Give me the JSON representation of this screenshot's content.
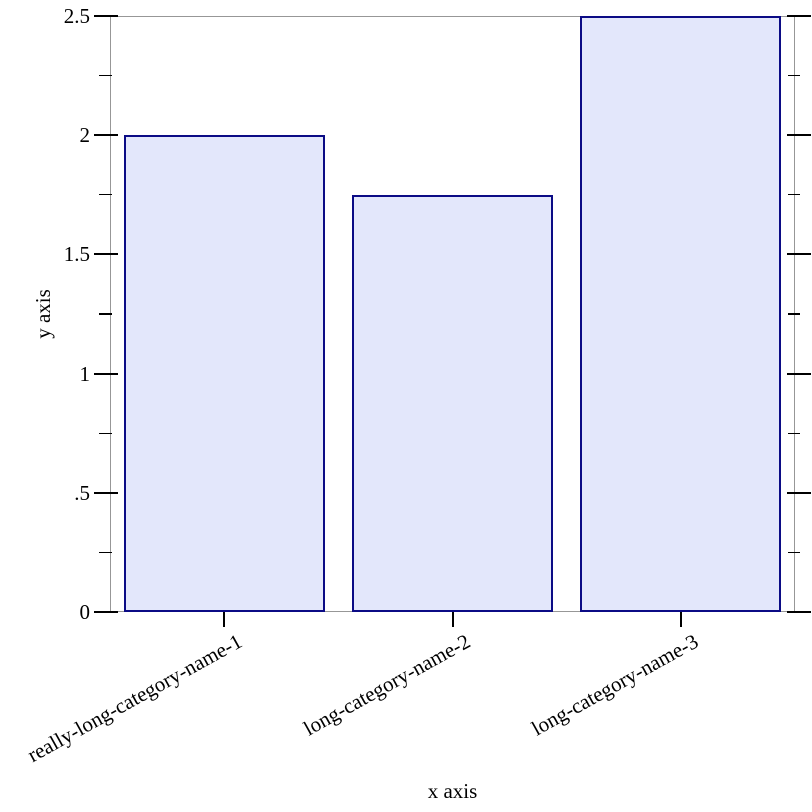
{
  "chart_data": {
    "type": "bar",
    "title": "",
    "xlabel": "x axis",
    "ylabel": "y axis",
    "categories": [
      "really-long-category-name-1",
      "long-category-name-2",
      "long-category-name-3"
    ],
    "values": [
      2,
      1.75,
      2.5
    ],
    "ylim": [
      0,
      2.5
    ],
    "y_major_ticks": [
      {
        "value": 0,
        "label": "0"
      },
      {
        "value": 0.5,
        "label": ".5"
      },
      {
        "value": 1,
        "label": "1"
      },
      {
        "value": 1.5,
        "label": "1.5"
      },
      {
        "value": 2,
        "label": "2"
      },
      {
        "value": 2.5,
        "label": "2.5"
      }
    ],
    "y_minor_ticks": [
      0.25,
      0.75,
      1.25,
      1.75,
      2.25
    ],
    "grid": false,
    "legend": "none",
    "bar_relative_width": 0.88,
    "xtick_label_rotation_deg": -29,
    "colors": {
      "bar_fill": "#e3e7fb",
      "bar_stroke": "#0b0b85",
      "frame": "#979797",
      "tick": "#000000",
      "text": "#000000",
      "background": "#ffffff"
    }
  }
}
